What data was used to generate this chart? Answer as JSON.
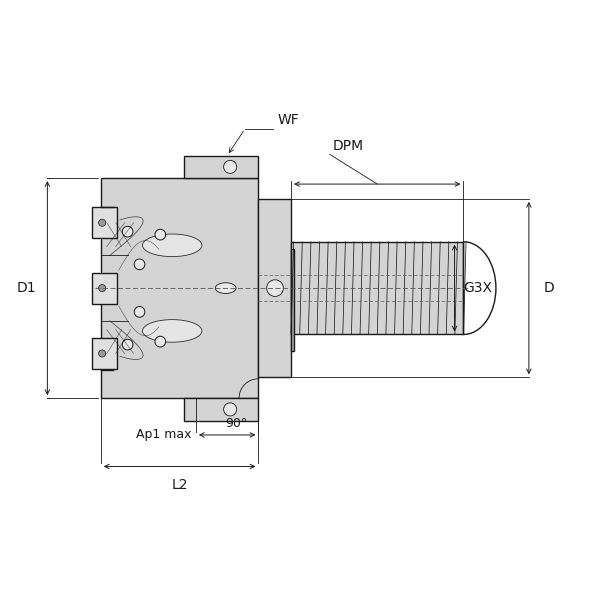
{
  "bg_color": "#ffffff",
  "line_color": "#1a1a1a",
  "fill_color_body": "#d4d4d4",
  "fill_color_light": "#e8e8e8",
  "fill_color_dark": "#aaaaaa",
  "dim_color": "#1a1a1a",
  "dashed_color": "#555555",
  "labels": {
    "D1": "D1",
    "WF": "WF",
    "DPM": "DPM",
    "G3X": "G3X",
    "D": "D",
    "Ap1_max": "Ap1 max",
    "L2": "L2",
    "angle": "90°"
  }
}
